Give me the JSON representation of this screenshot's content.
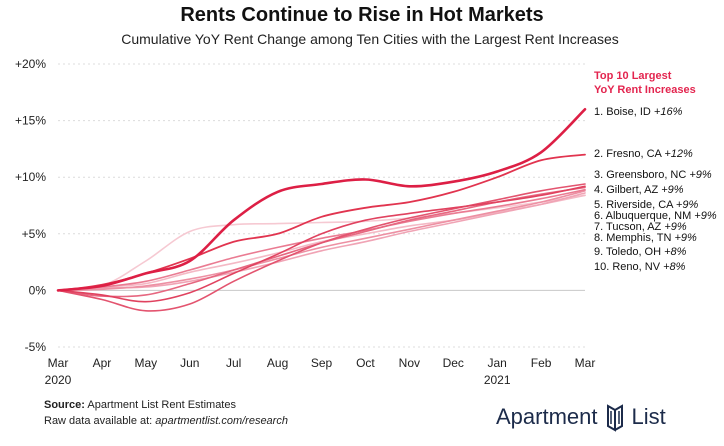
{
  "chart_data": {
    "type": "line",
    "title": "Rents Continue to Rise in Hot Markets",
    "subtitle": "Cumulative YoY Rent Change among Ten Cities with the Largest Rent Increases",
    "x_labels": [
      "Mar",
      "Apr",
      "May",
      "Jun",
      "Jul",
      "Aug",
      "Sep",
      "Oct",
      "Nov",
      "Dec",
      "Jan",
      "Feb",
      "Mar"
    ],
    "x_year_labels": [
      {
        "index": 0,
        "label": "2020"
      },
      {
        "index": 10,
        "label": "2021"
      }
    ],
    "y_ticks": [
      -5,
      0,
      5,
      10,
      15,
      20
    ],
    "y_tick_labels": [
      "-5%",
      "0%",
      "+5%",
      "+10%",
      "+15%",
      "+20%"
    ],
    "ylim": [
      -5,
      20
    ],
    "grid": "horizontal",
    "legend_title": [
      "Top 10 Largest",
      "YoY Rent Increases"
    ],
    "series": [
      {
        "name": "Reno, NV",
        "legend": "10. Reno, NV",
        "value_label": "+8%",
        "color": "#f6c9d2",
        "width": 1.6,
        "values": [
          0,
          0.4,
          2.6,
          5.2,
          5.8,
          5.9,
          6.0,
          6.1,
          6.4,
          6.8,
          7.3,
          7.8,
          8.4
        ]
      },
      {
        "name": "Toledo, OH",
        "legend": "9. Toledo, OH",
        "value_label": "+8%",
        "color": "#f4b9c5",
        "width": 1.6,
        "values": [
          0,
          0.3,
          0.6,
          1.6,
          2.4,
          3.3,
          4.3,
          5.0,
          5.7,
          6.2,
          6.9,
          7.6,
          8.4
        ]
      },
      {
        "name": "Memphis, TN",
        "legend": "8. Memphis, TN",
        "value_label": "+9%",
        "color": "#f0a4b5",
        "width": 1.6,
        "values": [
          0,
          0.2,
          0.3,
          0.8,
          1.6,
          2.5,
          3.5,
          4.3,
          5.2,
          6.0,
          6.8,
          7.6,
          8.6
        ]
      },
      {
        "name": "Tucson, AZ",
        "legend": "7. Tucson, AZ",
        "value_label": "+9%",
        "color": "#ed90a3",
        "width": 1.6,
        "values": [
          0,
          0.1,
          0.4,
          1.0,
          1.8,
          2.8,
          3.8,
          4.6,
          5.4,
          6.2,
          7.0,
          7.8,
          8.8
        ]
      },
      {
        "name": "Albuquerque, NM",
        "legend": "6. Albuquerque, NM",
        "value_label": "+9%",
        "color": "#ea7b92",
        "width": 1.6,
        "values": [
          0,
          0.3,
          0.8,
          1.8,
          2.9,
          3.8,
          4.6,
          5.3,
          6.1,
          6.8,
          7.4,
          8.1,
          8.9
        ]
      },
      {
        "name": "Riverside, CA",
        "legend": "5. Riverside, CA",
        "value_label": "+9%",
        "color": "#e66780",
        "width": 1.6,
        "values": [
          0,
          -0.5,
          -0.4,
          0.6,
          1.8,
          3.0,
          4.2,
          5.2,
          6.2,
          7.0,
          7.8,
          8.5,
          9.1
        ]
      },
      {
        "name": "Gilbert, AZ",
        "legend": "4. Gilbert, AZ",
        "value_label": "+9%",
        "color": "#e3546f",
        "width": 1.6,
        "values": [
          0,
          -0.8,
          -1.8,
          -1.2,
          0.8,
          2.6,
          4.2,
          5.4,
          6.4,
          7.2,
          8.0,
          8.8,
          9.4
        ]
      },
      {
        "name": "Greensboro, NC",
        "legend": "3. Greensboro, NC",
        "value_label": "+9%",
        "color": "#e0425f",
        "width": 1.6,
        "values": [
          0,
          -0.4,
          -1.0,
          -0.2,
          1.5,
          3.2,
          5.0,
          6.2,
          6.8,
          7.3,
          7.8,
          8.4,
          9.2
        ]
      },
      {
        "name": "Fresno, CA",
        "legend": "2. Fresno, CA",
        "value_label": "+12%",
        "color": "#e1344f",
        "width": 1.8,
        "values": [
          0,
          0.5,
          1.5,
          2.8,
          4.3,
          5.0,
          6.5,
          7.3,
          7.8,
          8.7,
          10.0,
          11.5,
          12.0
        ]
      },
      {
        "name": "Boise, ID",
        "legend": "1. Boise, ID",
        "value_label": "+16%",
        "color": "#dd1f45",
        "width": 2.6,
        "values": [
          0,
          0.4,
          1.5,
          2.6,
          6.2,
          8.7,
          9.4,
          9.8,
          9.2,
          9.6,
          10.5,
          12.2,
          16.0
        ]
      }
    ]
  },
  "footer": {
    "source_label": "Source:",
    "source_text": "Apartment List Rent Estimates",
    "raw_prefix": "Raw data available at:",
    "raw_link": "apartmentlist.com/research"
  },
  "brand": {
    "left": "Apartment",
    "right": "List",
    "logo_icon": "apartment-list-logo-icon"
  }
}
